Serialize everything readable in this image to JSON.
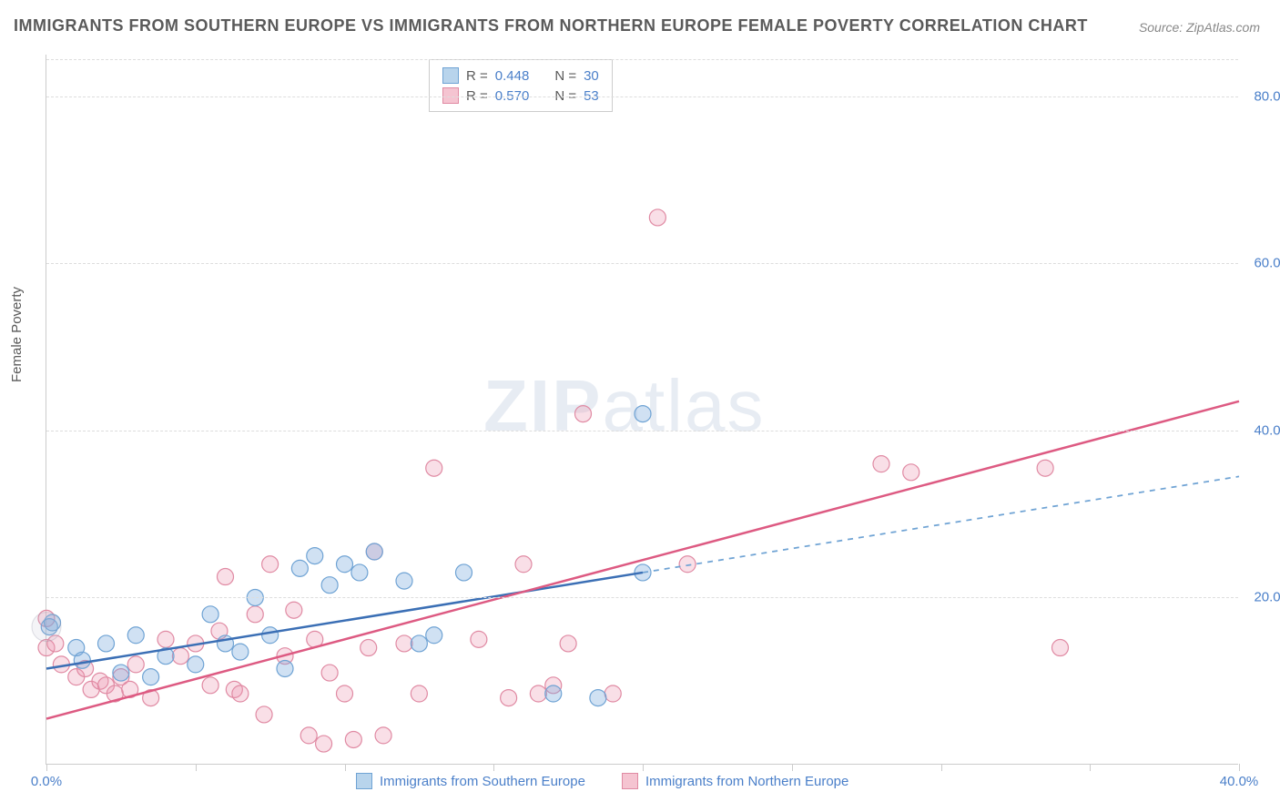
{
  "title": "IMMIGRANTS FROM SOUTHERN EUROPE VS IMMIGRANTS FROM NORTHERN EUROPE FEMALE POVERTY CORRELATION CHART",
  "source": "Source: ZipAtlas.com",
  "ylabel": "Female Poverty",
  "watermark": "ZIPatlas",
  "chart": {
    "type": "scatter-correlation",
    "background_color": "#ffffff",
    "grid_color": "#dddddd",
    "axis_color": "#cccccc",
    "xlim": [
      0,
      40
    ],
    "ylim": [
      0,
      85
    ],
    "xtick_positions": [
      0,
      5,
      10,
      15,
      20,
      25,
      30,
      35,
      40
    ],
    "xtick_labels": {
      "0": "0.0%",
      "40": "40.0%"
    },
    "ytick_positions": [
      20,
      40,
      60,
      80
    ],
    "ytick_labels": [
      "20.0%",
      "40.0%",
      "60.0%",
      "80.0%"
    ],
    "axis_label_color": "#4a7fc9",
    "axis_label_fontsize": 15
  },
  "stats_legend": {
    "rows": [
      {
        "swatch_fill": "#b8d4ec",
        "swatch_stroke": "#6fa3d4",
        "r_label": "R =",
        "r_value": "0.448",
        "n_label": "N =",
        "n_value": "30"
      },
      {
        "swatch_fill": "#f5c4d1",
        "swatch_stroke": "#e08aa3",
        "r_label": "R =",
        "r_value": "0.570",
        "n_label": "N =",
        "n_value": "53"
      }
    ]
  },
  "bottom_legend": [
    {
      "swatch_fill": "#b8d4ec",
      "swatch_stroke": "#6fa3d4",
      "label": "Immigrants from Southern Europe"
    },
    {
      "swatch_fill": "#f5c4d1",
      "swatch_stroke": "#e08aa3",
      "label": "Immigrants from Northern Europe"
    }
  ],
  "series": {
    "southern": {
      "fill_color": "rgba(120,170,220,0.35)",
      "stroke_color": "#6fa3d4",
      "marker_radius": 9,
      "regression": {
        "x1": 0,
        "y1": 11.5,
        "x2": 20,
        "y2": 23,
        "extrap_x2": 40,
        "extrap_y2": 34.5,
        "color": "#3b6fb5",
        "dash_color": "#6fa3d4",
        "width": 2.5
      },
      "points": [
        [
          0.1,
          16.5
        ],
        [
          0.2,
          17
        ],
        [
          1.0,
          14
        ],
        [
          1.2,
          12.5
        ],
        [
          2.0,
          14.5
        ],
        [
          2.5,
          11
        ],
        [
          3.0,
          15.5
        ],
        [
          3.5,
          10.5
        ],
        [
          4.0,
          13
        ],
        [
          5.0,
          12
        ],
        [
          5.5,
          18
        ],
        [
          6.0,
          14.5
        ],
        [
          6.5,
          13.5
        ],
        [
          7.0,
          20
        ],
        [
          7.5,
          15.5
        ],
        [
          8.0,
          11.5
        ],
        [
          8.5,
          23.5
        ],
        [
          9.0,
          25
        ],
        [
          9.5,
          21.5
        ],
        [
          10.0,
          24
        ],
        [
          10.5,
          23
        ],
        [
          11.0,
          25.5
        ],
        [
          12.0,
          22
        ],
        [
          12.5,
          14.5
        ],
        [
          13.0,
          15.5
        ],
        [
          14.0,
          23
        ],
        [
          17.0,
          8.5
        ],
        [
          18.5,
          8
        ],
        [
          20.0,
          42
        ],
        [
          20.0,
          23
        ]
      ]
    },
    "northern": {
      "fill_color": "rgba(235,150,175,0.3)",
      "stroke_color": "#e08aa3",
      "marker_radius": 9,
      "regression": {
        "x1": 0,
        "y1": 5.5,
        "x2": 40,
        "y2": 43.5,
        "color": "#dd5a82",
        "width": 2.5
      },
      "points": [
        [
          0.0,
          17.5
        ],
        [
          0.0,
          14
        ],
        [
          0.3,
          14.5
        ],
        [
          0.5,
          12
        ],
        [
          1.0,
          10.5
        ],
        [
          1.3,
          11.5
        ],
        [
          1.5,
          9
        ],
        [
          1.8,
          10
        ],
        [
          2.0,
          9.5
        ],
        [
          2.3,
          8.5
        ],
        [
          2.5,
          10.5
        ],
        [
          2.8,
          9
        ],
        [
          3.0,
          12
        ],
        [
          3.5,
          8
        ],
        [
          4.0,
          15
        ],
        [
          4.5,
          13
        ],
        [
          5.0,
          14.5
        ],
        [
          5.5,
          9.5
        ],
        [
          5.8,
          16
        ],
        [
          6.0,
          22.5
        ],
        [
          6.3,
          9
        ],
        [
          6.5,
          8.5
        ],
        [
          7.0,
          18
        ],
        [
          7.3,
          6
        ],
        [
          7.5,
          24
        ],
        [
          8.0,
          13
        ],
        [
          8.3,
          18.5
        ],
        [
          8.8,
          3.5
        ],
        [
          9.0,
          15
        ],
        [
          9.3,
          2.5
        ],
        [
          9.5,
          11
        ],
        [
          10.0,
          8.5
        ],
        [
          10.3,
          3
        ],
        [
          10.8,
          14
        ],
        [
          11.0,
          25.5
        ],
        [
          11.3,
          3.5
        ],
        [
          12.0,
          14.5
        ],
        [
          12.5,
          8.5
        ],
        [
          13.0,
          35.5
        ],
        [
          14.5,
          15
        ],
        [
          15.5,
          8
        ],
        [
          16.0,
          24
        ],
        [
          16.5,
          8.5
        ],
        [
          17.0,
          9.5
        ],
        [
          17.5,
          14.5
        ],
        [
          18.0,
          42
        ],
        [
          19.0,
          8.5
        ],
        [
          20.5,
          65.5
        ],
        [
          21.5,
          24
        ],
        [
          28.0,
          36
        ],
        [
          29.0,
          35
        ],
        [
          33.5,
          35.5
        ],
        [
          34.0,
          14
        ]
      ]
    }
  }
}
